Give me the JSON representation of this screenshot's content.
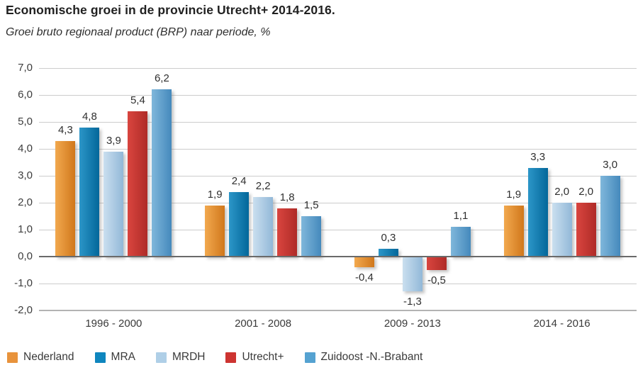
{
  "title": "Economische groei in de provincie Utrecht+ 2014-2016.",
  "subtitle": "Groei bruto regionaal product (BRP) naar periode, %",
  "chart_data": {
    "type": "bar",
    "title": "Economische groei in de provincie Utrecht+ 2014-2016.",
    "subtitle": "Groei bruto regionaal product (BRP) naar periode, %",
    "categories": [
      "1996 - 2000",
      "2001 - 2008",
      "2009 - 2013",
      "2014 - 2016"
    ],
    "series": [
      {
        "name": "Nederland",
        "values": [
          4.3,
          1.9,
          -0.4,
          1.9
        ],
        "labels": [
          "4,3",
          "1,9",
          "-0,4",
          "1,9"
        ],
        "color": "#E8933C",
        "gradient": [
          "#F2A94F",
          "#D0771B"
        ]
      },
      {
        "name": "MRA",
        "values": [
          4.8,
          2.4,
          0.3,
          3.3
        ],
        "labels": [
          "4,8",
          "2,4",
          "0,3",
          "3,3"
        ],
        "color": "#0F86BE",
        "gradient": [
          "#2C96C8",
          "#03679A"
        ]
      },
      {
        "name": "MRDH",
        "values": [
          3.9,
          2.2,
          -1.3,
          2.0
        ],
        "labels": [
          "3,9",
          "2,2",
          "-1,3",
          "2,0"
        ],
        "color": "#AFCFE7",
        "gradient": [
          "#CADFEF",
          "#92B8D8"
        ]
      },
      {
        "name": "Utrecht+",
        "values": [
          5.4,
          1.8,
          -0.5,
          2.0
        ],
        "labels": [
          "5,4",
          "1,8",
          "-0,5",
          "2,0"
        ],
        "color": "#CD3431",
        "gradient": [
          "#D9453F",
          "#AF2B27"
        ]
      },
      {
        "name": "Zuidoost -N.-Brabant",
        "values": [
          6.2,
          1.5,
          1.1,
          3.0
        ],
        "labels": [
          "6,2",
          "1,5",
          "1,1",
          "3,0"
        ],
        "color": "#55A2D1",
        "gradient": [
          "#7FB7DB",
          "#4589BC"
        ]
      }
    ],
    "y_ticks": [
      {
        "value": 7,
        "label": "7,0"
      },
      {
        "value": 6,
        "label": "6,0"
      },
      {
        "value": 5,
        "label": "5,0"
      },
      {
        "value": 4,
        "label": "4,0"
      },
      {
        "value": 3,
        "label": "3,0"
      },
      {
        "value": 2,
        "label": "2,0"
      },
      {
        "value": 1,
        "label": "1,0"
      },
      {
        "value": 0,
        "label": "0,0"
      },
      {
        "value": -1,
        "label": "-1,0"
      },
      {
        "value": -2,
        "label": "-2,0"
      }
    ],
    "ylim": [
      -2,
      7
    ],
    "xlabel": "",
    "ylabel": "",
    "grid": true,
    "legend_position": "bottom",
    "colors": {
      "grid": "#CCCCCC",
      "zero_line": "#6A6A6A",
      "bottom_line": "#B3B3B3",
      "text": "#3A3A3A"
    }
  }
}
